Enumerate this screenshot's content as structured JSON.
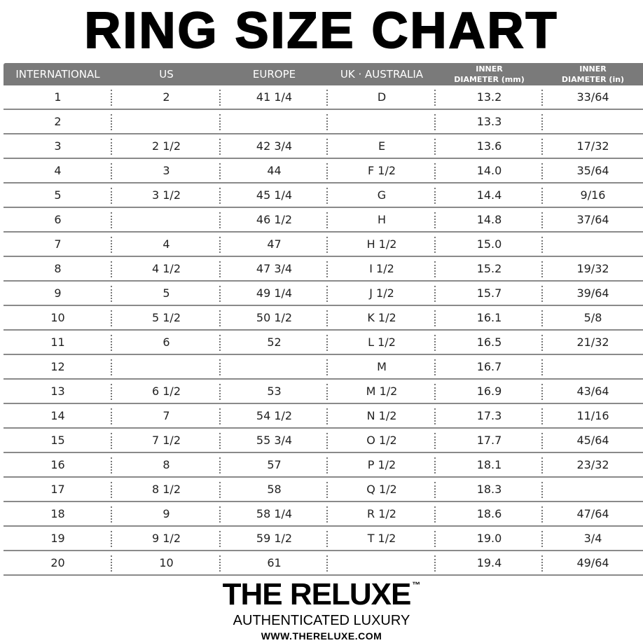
{
  "title": "RING SIZE CHART",
  "headers": [
    {
      "line1": "INTERNATIONAL",
      "line2": ""
    },
    {
      "line1": "US",
      "line2": ""
    },
    {
      "line1": "EUROPE",
      "line2": ""
    },
    {
      "line1": "UK · AUSTRALIA",
      "line2": ""
    },
    {
      "line1": "INNER",
      "line2": "DIAMETER (mm)"
    },
    {
      "line1": "INNER",
      "line2": "DIAMETER (in)"
    }
  ],
  "rows": [
    [
      "1",
      "2",
      "41 1/4",
      "D",
      "13.2",
      "33/64"
    ],
    [
      "2",
      "",
      "",
      "",
      "13.3",
      ""
    ],
    [
      "3",
      "2 1/2",
      "42 3/4",
      "E",
      "13.6",
      "17/32"
    ],
    [
      "4",
      "3",
      "44",
      "F 1/2",
      "14.0",
      "35/64"
    ],
    [
      "5",
      "3 1/2",
      "45 1/4",
      "G",
      "14.4",
      "9/16"
    ],
    [
      "6",
      "",
      "46 1/2",
      "H",
      "14.8",
      "37/64"
    ],
    [
      "7",
      "4",
      "47",
      "H 1/2",
      "15.0",
      ""
    ],
    [
      "8",
      "4 1/2",
      "47 3/4",
      "I 1/2",
      "15.2",
      "19/32"
    ],
    [
      "9",
      "5",
      "49 1/4",
      "J 1/2",
      "15.7",
      "39/64"
    ],
    [
      "10",
      "5 1/2",
      "50 1/2",
      "K 1/2",
      "16.1",
      "5/8"
    ],
    [
      "11",
      "6",
      "52",
      "L 1/2",
      "16.5",
      "21/32"
    ],
    [
      "12",
      "",
      "",
      "M",
      "16.7",
      ""
    ],
    [
      "13",
      "6 1/2",
      "53",
      "M 1/2",
      "16.9",
      "43/64"
    ],
    [
      "14",
      "7",
      "54 1/2",
      "N 1/2",
      "17.3",
      "11/16"
    ],
    [
      "15",
      "7 1/2",
      "55 3/4",
      "O 1/2",
      "17.7",
      "45/64"
    ],
    [
      "16",
      "8",
      "57",
      "P 1/2",
      "18.1",
      "23/32"
    ],
    [
      "17",
      "8 1/2",
      "58",
      "Q 1/2",
      "18.3",
      ""
    ],
    [
      "18",
      "9",
      "58 1/4",
      "R 1/2",
      "18.6",
      "47/64"
    ],
    [
      "19",
      "9 1/2",
      "59 1/2",
      "T 1/2",
      "19.0",
      "3/4"
    ],
    [
      "20",
      "10",
      "61",
      "",
      "19.4",
      "49/64"
    ]
  ],
  "footer": {
    "brand": "THE RELUXE",
    "tm": "™",
    "tagline": "AUTHENTICATED LUXURY",
    "url": "WWW.THERELUXE.COM"
  },
  "colors": {
    "header_bg": "#7a7a7a",
    "header_text": "#ffffff",
    "divider": "#8a8a8a"
  }
}
